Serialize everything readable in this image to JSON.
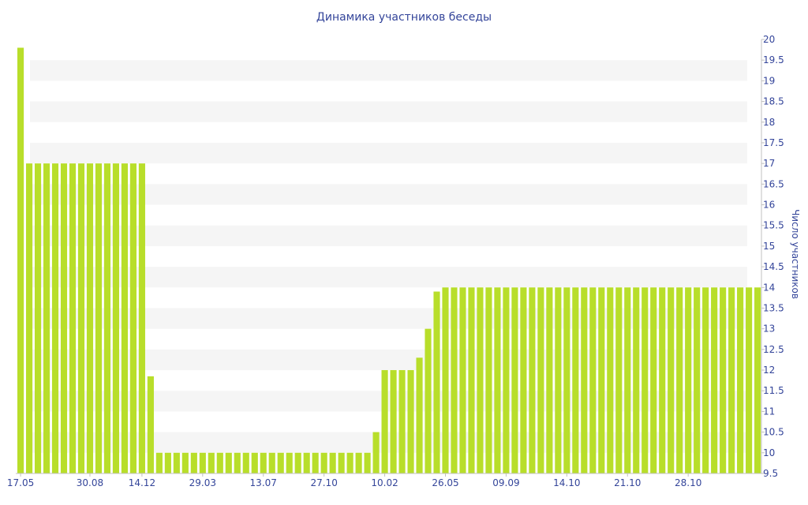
{
  "chart_data": {
    "type": "bar",
    "title": "Динамика участников беседы",
    "ylabel": "Число участников",
    "xlabel": "",
    "ylim": [
      9.5,
      20
    ],
    "ytick_step": 0.5,
    "y_axis_side": "right",
    "grid_bands": true,
    "legend": "none",
    "colors": {
      "bar": "#b8de2a",
      "text": "#34459a",
      "band": "#f5f5f5",
      "axis": "#c0c0c0"
    },
    "x_tick_labels": [
      "17.05",
      "30.08",
      "14.12",
      "29.03",
      "13.07",
      "27.10",
      "10.02",
      "26.05",
      "09.09",
      "14.10",
      "21.10",
      "28.10"
    ],
    "x_tick_positions": [
      0,
      8,
      14,
      21,
      28,
      35,
      42,
      49,
      56,
      63,
      70,
      77
    ],
    "values": [
      19.8,
      17,
      17,
      17,
      17,
      17,
      17,
      17,
      17,
      17,
      17,
      17,
      17,
      17,
      17,
      11.85,
      10,
      10,
      10,
      10,
      10,
      10,
      10,
      10,
      10,
      10,
      10,
      10,
      10,
      10,
      10,
      10,
      10,
      10,
      10,
      10,
      10,
      10,
      10,
      10,
      10,
      10.5,
      12,
      12,
      12,
      12,
      12.3,
      13,
      13.9,
      14,
      14,
      14,
      14,
      14,
      14,
      14,
      14,
      14,
      14,
      14,
      14,
      14,
      14,
      14,
      14,
      14,
      14,
      14,
      14,
      14,
      14,
      14,
      14,
      14,
      14,
      14,
      14,
      14,
      14,
      14,
      14,
      14,
      14,
      14,
      14,
      14
    ]
  }
}
